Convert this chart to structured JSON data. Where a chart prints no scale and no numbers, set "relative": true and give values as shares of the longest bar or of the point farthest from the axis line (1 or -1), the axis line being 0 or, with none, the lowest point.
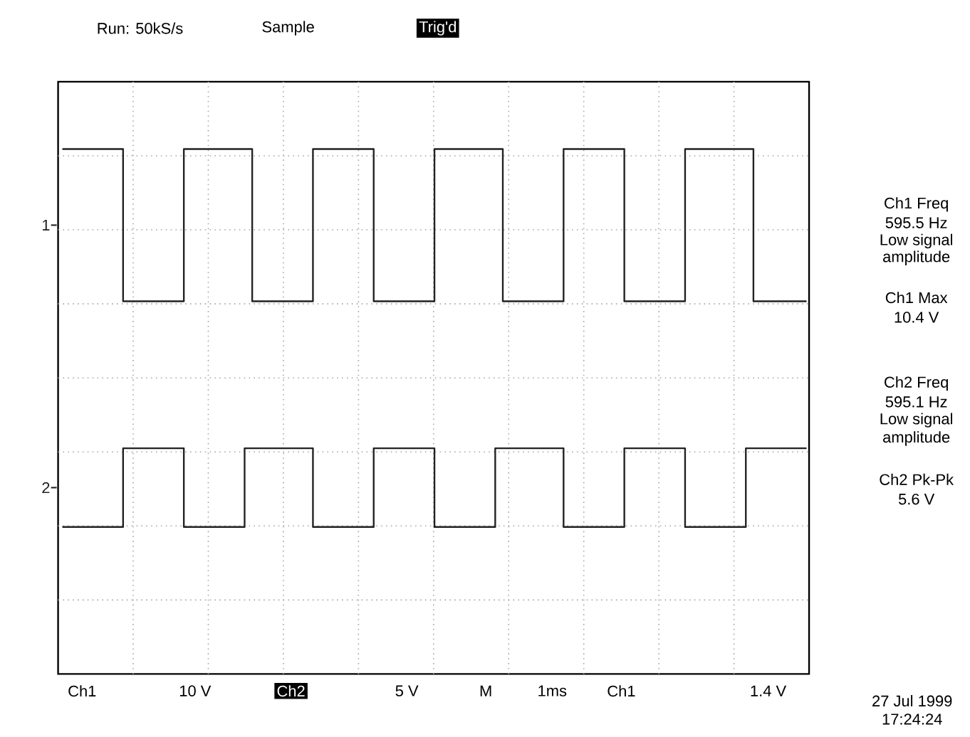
{
  "chart_data": {
    "type": "step",
    "relative": true,
    "grid": true,
    "legend": "left",
    "categories": [
      null,
      null,
      null,
      null,
      null,
      null,
      null,
      null,
      null,
      null,
      null,
      null,
      null,
      null,
      null,
      null,
      null,
      null,
      null,
      null,
      null,
      null,
      null,
      null,
      null,
      null,
      null,
      null,
      null,
      null,
      null,
      null,
      null,
      null,
      null,
      null,
      null,
      null,
      null,
      null,
      null,
      null,
      null,
      null,
      null,
      null,
      null,
      null,
      null,
      null,
      null,
      null,
      null,
      null,
      null,
      null,
      null,
      null,
      null,
      null,
      null,
      null,
      null,
      null,
      null,
      null,
      null,
      null,
      null,
      null,
      null,
      null,
      null,
      null,
      null,
      null,
      null,
      null,
      null,
      null,
      null,
      null,
      null,
      null,
      null,
      null,
      null,
      null,
      null,
      null,
      null,
      null,
      null,
      null,
      null,
      null,
      null,
      null,
      null
    ],
    "series": [
      {
        "name": "1",
        "color": "#222222",
        "values": [
          1,
          1,
          1,
          1,
          1,
          1,
          1,
          1,
          0.71,
          0.71,
          0.71,
          0.71,
          0.71,
          0.71,
          0.71,
          0.71,
          1,
          1,
          1,
          1,
          1,
          1,
          1,
          1,
          1,
          0.71,
          0.71,
          0.71,
          0.71,
          0.71,
          0.71,
          0.71,
          0.71,
          1,
          1,
          1,
          1,
          1,
          1,
          1,
          1,
          0.71,
          0.71,
          0.71,
          0.71,
          0.71,
          0.71,
          0.71,
          0.71,
          1,
          1,
          1,
          1,
          1,
          1,
          1,
          1,
          1,
          0.71,
          0.71,
          0.71,
          0.71,
          0.71,
          0.71,
          0.71,
          0.71,
          1,
          1,
          1,
          1,
          1,
          1,
          1,
          1,
          0.71,
          0.71,
          0.71,
          0.71,
          0.71,
          0.71,
          0.71,
          0.71,
          1,
          1,
          1,
          1,
          1,
          1,
          1,
          1,
          1,
          0.71,
          0.71,
          0.71,
          0.71,
          0.71,
          0.71,
          0.71,
          0.71
        ]
      },
      {
        "name": "2",
        "color": "#222222",
        "values": [
          0.28,
          0.28,
          0.28,
          0.28,
          0.28,
          0.28,
          0.28,
          0.28,
          0.43,
          0.43,
          0.43,
          0.43,
          0.43,
          0.43,
          0.43,
          0.43,
          0.28,
          0.28,
          0.28,
          0.28,
          0.28,
          0.28,
          0.28,
          0.28,
          0.43,
          0.43,
          0.43,
          0.43,
          0.43,
          0.43,
          0.43,
          0.43,
          0.43,
          0.28,
          0.28,
          0.28,
          0.28,
          0.28,
          0.28,
          0.28,
          0.28,
          0.43,
          0.43,
          0.43,
          0.43,
          0.43,
          0.43,
          0.43,
          0.43,
          0.28,
          0.28,
          0.28,
          0.28,
          0.28,
          0.28,
          0.28,
          0.28,
          0.43,
          0.43,
          0.43,
          0.43,
          0.43,
          0.43,
          0.43,
          0.43,
          0.43,
          0.28,
          0.28,
          0.28,
          0.28,
          0.28,
          0.28,
          0.28,
          0.28,
          0.43,
          0.43,
          0.43,
          0.43,
          0.43,
          0.43,
          0.43,
          0.43,
          0.28,
          0.28,
          0.28,
          0.28,
          0.28,
          0.28,
          0.28,
          0.28,
          0.43,
          0.43,
          0.43,
          0.43,
          0.43,
          0.43,
          0.43,
          0.43,
          0.43
        ]
      }
    ],
    "annotations": [
      "Run: 50kS/s",
      "Sample",
      "Trig'd",
      "Ch1 Freq",
      "595.5 Hz",
      "Low signal",
      "amplitude",
      "Ch1 Max",
      "10.4 V",
      "Ch2 Freq",
      "595.1 Hz",
      "Low signal",
      "amplitude",
      "Ch2 Pk-Pk",
      "5.6 V",
      "Ch1",
      "10 V",
      "Ch2",
      "5 V",
      "M",
      "1ms",
      "Ch1",
      "1.4 V",
      "27 Jul 1999",
      "17:24:24"
    ]
  }
}
